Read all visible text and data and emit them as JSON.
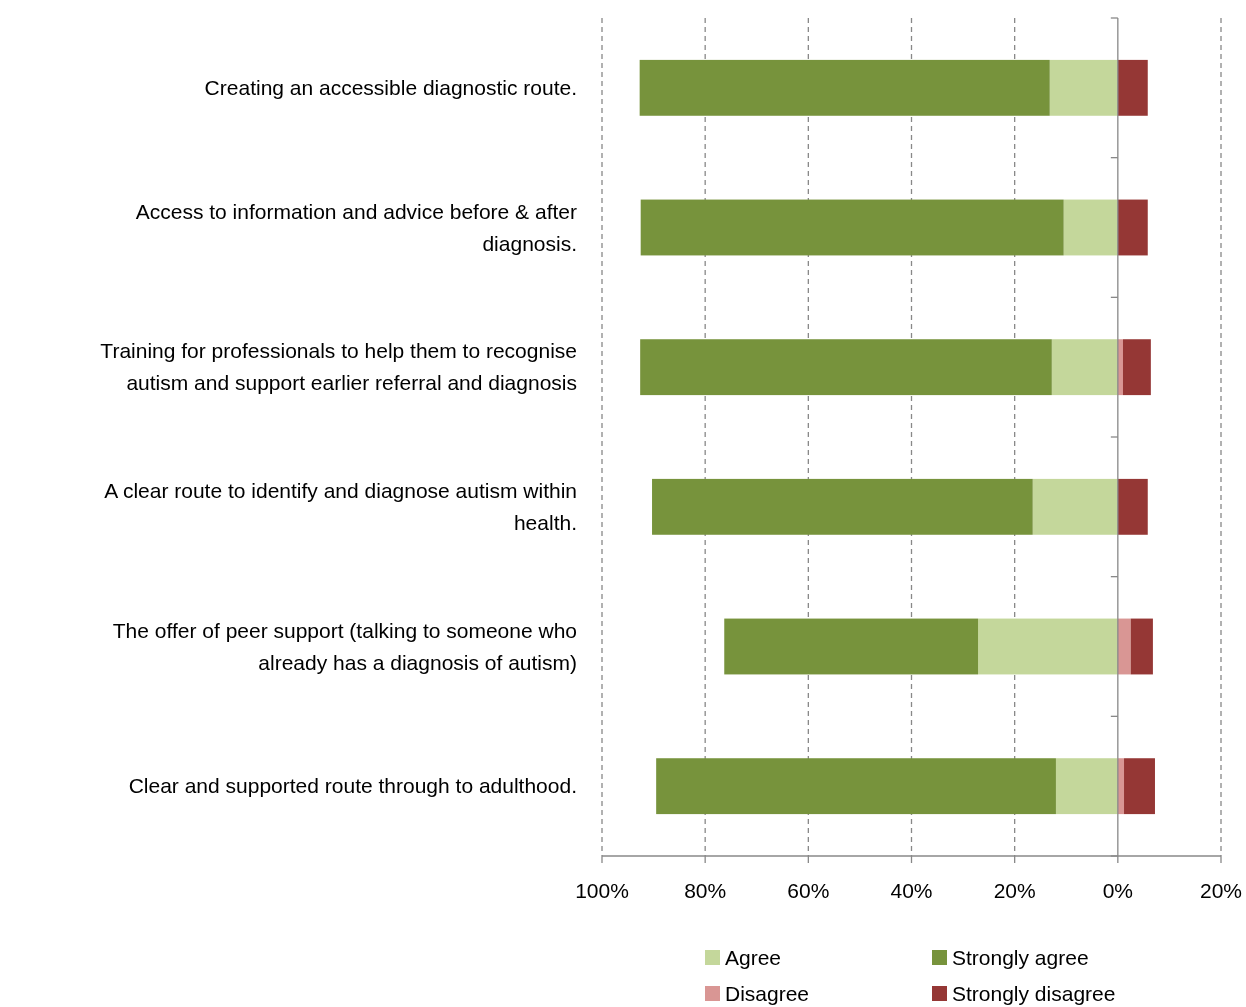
{
  "chart_data": {
    "type": "bar",
    "orientation": "horizontal",
    "stacked": true,
    "categories": [
      "Creating an accessible diagnostic route.",
      "Access to information and advice before & after diagnosis.",
      "Training for professionals to help them to recognise autism and support earlier referral and diagnosis",
      "A clear route to identify and diagnose autism within health.",
      "The offer of peer support (talking to someone who already has a diagnosis of autism)",
      "Clear and supported route through to adulthood."
    ],
    "series": [
      {
        "name": "Agree",
        "color": "#c4d79b",
        "values": [
          -13.2,
          -10.5,
          -12.8,
          -16.5,
          -27.1,
          -12
        ]
      },
      {
        "name": "Strongly agree",
        "color": "#77933c",
        "values": [
          -79.5,
          -82,
          -79.8,
          -73.8,
          -49.2,
          -77.5
        ]
      },
      {
        "name": "Disagree",
        "color": "#d99694",
        "values": [
          0,
          0,
          1,
          0,
          2.5,
          1.2
        ]
      },
      {
        "name": "Strongly disagree",
        "color": "#953735",
        "values": [
          5.8,
          5.8,
          5.4,
          5.8,
          4.3,
          6
        ]
      }
    ],
    "xlim": [
      -100,
      20
    ],
    "xticks": [
      {
        "value": -100,
        "label": "100%"
      },
      {
        "value": -80,
        "label": "80%"
      },
      {
        "value": -60,
        "label": "60%"
      },
      {
        "value": -40,
        "label": "40%"
      },
      {
        "value": -20,
        "label": "20%"
      },
      {
        "value": 0,
        "label": "0%"
      },
      {
        "value": 20,
        "label": "20%"
      }
    ],
    "grid": "x",
    "legend": "bottom"
  }
}
